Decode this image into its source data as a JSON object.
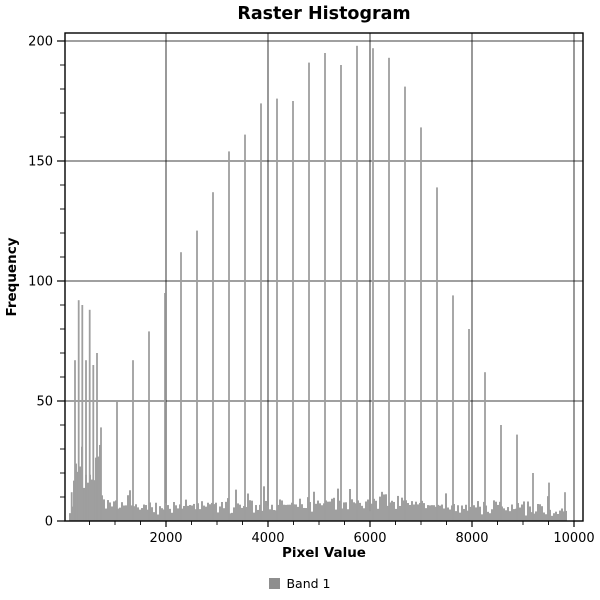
{
  "chart_data": {
    "type": "bar",
    "title": "Raster Histogram",
    "xlabel": "Pixel Value",
    "ylabel": "Frequency",
    "xlim": [
      0,
      10200
    ],
    "ylim": [
      0,
      203
    ],
    "x_ticks": [
      2000,
      4000,
      6000,
      8000,
      10000
    ],
    "x_minor_step": 500,
    "y_ticks": [
      0,
      50,
      100,
      150,
      200
    ],
    "y_minor_step": 10,
    "grid": true,
    "bar_color": "#9f9f9f",
    "axis_color": "#000000",
    "background_color": "#ffffff",
    "legend": {
      "label": "Band 1",
      "position": "bottom-center",
      "swatch_color": "#8e8e8e"
    },
    "noise_seed": 7,
    "noise_jitter": 3,
    "noise_profile": [
      [
        40,
        0
      ],
      [
        120,
        2
      ],
      [
        180,
        14
      ],
      [
        250,
        22
      ],
      [
        310,
        25
      ],
      [
        400,
        16
      ],
      [
        480,
        12
      ],
      [
        560,
        14
      ],
      [
        620,
        22
      ],
      [
        680,
        28
      ],
      [
        730,
        14
      ],
      [
        800,
        6
      ],
      [
        900,
        4
      ],
      [
        1500,
        4
      ],
      [
        2500,
        4.5
      ],
      [
        3500,
        5
      ],
      [
        4500,
        5
      ],
      [
        5500,
        6
      ],
      [
        6300,
        6.5
      ],
      [
        7000,
        5
      ],
      [
        7600,
        4.5
      ],
      [
        8300,
        4
      ],
      [
        9000,
        4
      ],
      [
        9500,
        3.5
      ],
      [
        9800,
        2
      ],
      [
        9850,
        0
      ],
      [
        10200,
        0
      ]
    ],
    "spikes": [
      [
        150,
        12
      ],
      [
        216,
        67
      ],
      [
        288,
        92
      ],
      [
        359,
        90
      ],
      [
        431,
        67
      ],
      [
        504,
        88
      ],
      [
        575,
        65
      ],
      [
        647,
        70
      ],
      [
        725,
        39
      ],
      [
        1039,
        50
      ],
      [
        1353,
        67
      ],
      [
        1667,
        79
      ],
      [
        1980,
        95
      ],
      [
        2294,
        112
      ],
      [
        2608,
        121
      ],
      [
        2922,
        137
      ],
      [
        3235,
        154
      ],
      [
        3549,
        161
      ],
      [
        3863,
        174
      ],
      [
        4177,
        176
      ],
      [
        4490,
        175
      ],
      [
        4804,
        191
      ],
      [
        5118,
        195
      ],
      [
        5432,
        190
      ],
      [
        5745,
        198
      ],
      [
        6059,
        197
      ],
      [
        6373,
        193
      ],
      [
        6687,
        181
      ],
      [
        7000,
        164
      ],
      [
        7314,
        139
      ],
      [
        7628,
        94
      ],
      [
        7942,
        80
      ],
      [
        8255,
        62
      ],
      [
        8569,
        40
      ],
      [
        8883,
        36
      ],
      [
        9197,
        20
      ],
      [
        9510,
        16
      ],
      [
        9824,
        12
      ]
    ]
  }
}
